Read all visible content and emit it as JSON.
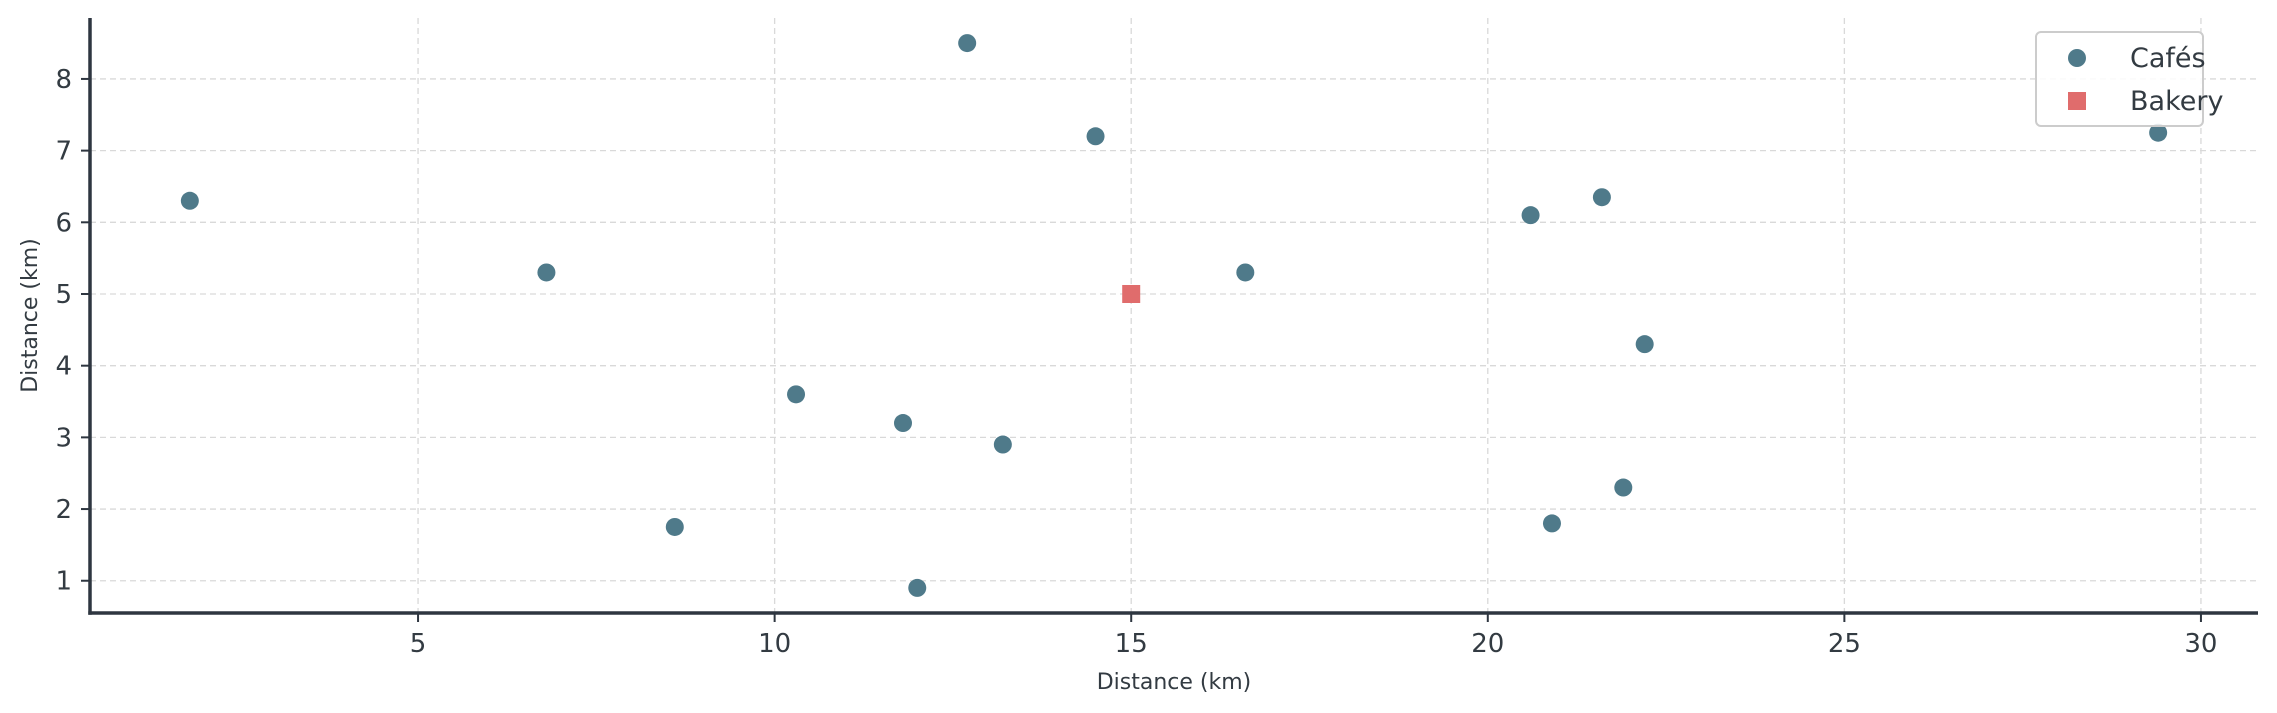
{
  "chart_data": {
    "type": "scatter",
    "title": "",
    "xlabel": "Distance (km)",
    "ylabel": "Distance (km)",
    "xlim": [
      0.4,
      30.8
    ],
    "ylim": [
      0.55,
      8.85
    ],
    "xticks": [
      5,
      10,
      15,
      20,
      25,
      30
    ],
    "yticks": [
      1,
      2,
      3,
      4,
      5,
      6,
      7,
      8
    ],
    "grid": true,
    "legend_position": "top-right",
    "series": [
      {
        "name": "Cafés",
        "marker": "circle",
        "color": "#4f7a8a",
        "points": [
          {
            "x": 1.8,
            "y": 6.3
          },
          {
            "x": 6.8,
            "y": 5.3
          },
          {
            "x": 8.6,
            "y": 1.75
          },
          {
            "x": 10.3,
            "y": 3.6
          },
          {
            "x": 11.8,
            "y": 3.2
          },
          {
            "x": 12.0,
            "y": 0.9
          },
          {
            "x": 12.7,
            "y": 8.5
          },
          {
            "x": 13.2,
            "y": 2.9
          },
          {
            "x": 14.5,
            "y": 7.2
          },
          {
            "x": 16.6,
            "y": 5.3
          },
          {
            "x": 20.6,
            "y": 6.1
          },
          {
            "x": 20.9,
            "y": 1.8
          },
          {
            "x": 21.6,
            "y": 6.35
          },
          {
            "x": 21.9,
            "y": 2.3
          },
          {
            "x": 22.2,
            "y": 4.3
          },
          {
            "x": 29.4,
            "y": 7.25
          }
        ]
      },
      {
        "name": "Bakery",
        "marker": "square",
        "color": "#e06c6c",
        "points": [
          {
            "x": 15.0,
            "y": 5.0
          }
        ]
      }
    ]
  }
}
